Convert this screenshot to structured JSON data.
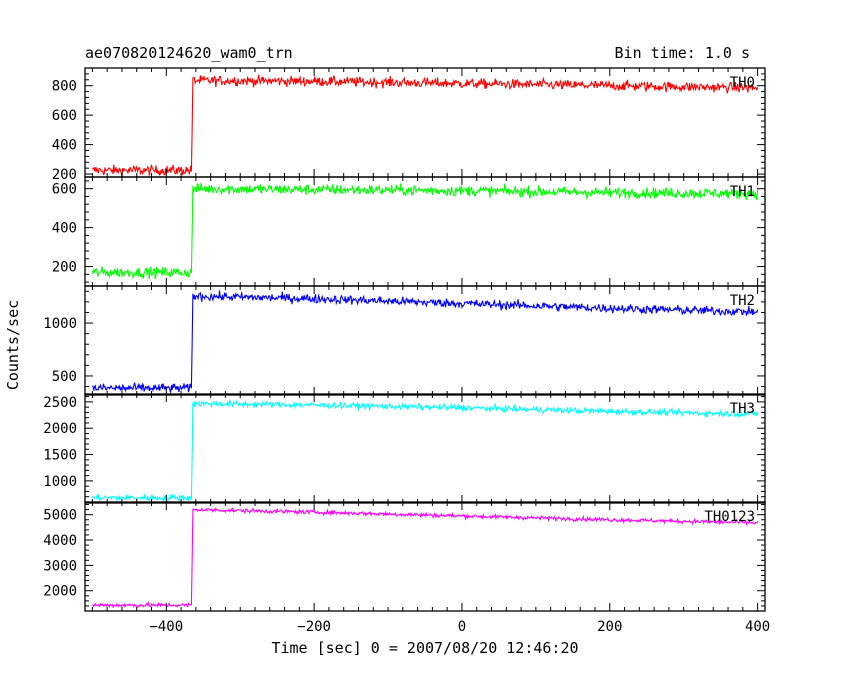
{
  "header": {
    "title": "ae070820124620_wam0_trn",
    "bin_label": "Bin time: 1.0 s"
  },
  "chart_data": {
    "type": "line",
    "xlabel": "Time [sec] 0 = 2007/08/20 12:46:20",
    "ylabel": "Counts/sec",
    "xlim": [
      -510,
      410
    ],
    "x_ticks": [
      -400,
      -200,
      0,
      200,
      400
    ],
    "x_tick_labels": [
      "−400",
      "−200",
      "0",
      "200",
      "400"
    ],
    "trigger_time": -365,
    "panels": [
      {
        "name": "TH0",
        "color": "#ff0000",
        "ylim": [
          180,
          920
        ],
        "y_ticks": [
          200,
          400,
          600,
          800
        ],
        "levels": [
          [
            -500,
            225
          ],
          [
            -366,
            225
          ],
          [
            -364,
            835
          ],
          [
            -200,
            830
          ],
          [
            0,
            815
          ],
          [
            200,
            800
          ],
          [
            400,
            785
          ]
        ],
        "noise": 32
      },
      {
        "name": "TH1",
        "color": "#00ff00",
        "ylim": [
          100,
          660
        ],
        "y_ticks": [
          200,
          400,
          600
        ],
        "levels": [
          [
            -500,
            170
          ],
          [
            -366,
            170
          ],
          [
            -364,
            600
          ],
          [
            -200,
            595
          ],
          [
            0,
            590
          ],
          [
            200,
            580
          ],
          [
            400,
            575
          ]
        ],
        "noise": 26
      },
      {
        "name": "TH2",
        "color": "#0000ff",
        "ylim": [
          320,
          1350
        ],
        "y_ticks": [
          500,
          1000
        ],
        "levels": [
          [
            -500,
            385
          ],
          [
            -366,
            385
          ],
          [
            -364,
            1255
          ],
          [
            -200,
            1230
          ],
          [
            0,
            1185
          ],
          [
            200,
            1140
          ],
          [
            400,
            1105
          ]
        ],
        "noise": 40
      },
      {
        "name": "TH3",
        "color": "#00ffff",
        "ylim": [
          580,
          2650
        ],
        "y_ticks": [
          1000,
          1500,
          2000,
          2500
        ],
        "levels": [
          [
            -500,
            680
          ],
          [
            -366,
            680
          ],
          [
            -364,
            2470
          ],
          [
            -200,
            2440
          ],
          [
            0,
            2390
          ],
          [
            200,
            2320
          ],
          [
            400,
            2270
          ]
        ],
        "noise": 55
      },
      {
        "name": "TH0123",
        "color": "#ff00ff",
        "ylim": [
          1200,
          5500
        ],
        "y_ticks": [
          2000,
          3000,
          4000,
          5000
        ],
        "levels": [
          [
            -500,
            1430
          ],
          [
            -366,
            1430
          ],
          [
            -364,
            5200
          ],
          [
            -200,
            5100
          ],
          [
            0,
            4950
          ],
          [
            200,
            4800
          ],
          [
            400,
            4680
          ]
        ],
        "noise": 75
      }
    ]
  }
}
